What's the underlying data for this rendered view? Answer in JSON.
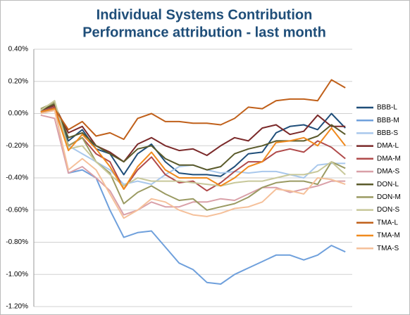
{
  "chart_data": {
    "type": "line",
    "title": "Individual Systems Contribution",
    "subtitle": "Performance attribution - last month",
    "categories": [
      null,
      null,
      null,
      null,
      null,
      null,
      null,
      null,
      null,
      null,
      null,
      null,
      null,
      null,
      null,
      null,
      null,
      null,
      null,
      null,
      null,
      null,
      null
    ],
    "ylim": [
      -1.2,
      0.4
    ],
    "yticks": [
      {
        "value": 0.4,
        "label": "0.40%"
      },
      {
        "value": 0.2,
        "label": "0.20%"
      },
      {
        "value": 0,
        "label": "0.00%"
      },
      {
        "value": -0.2,
        "label": "-0.20%"
      },
      {
        "value": -0.4,
        "label": "-0.40%"
      },
      {
        "value": -0.6,
        "label": "-0.60%"
      },
      {
        "value": -0.8,
        "label": "-0.80%"
      },
      {
        "value": -1.0,
        "label": "-1.00%"
      },
      {
        "value": -1.2,
        "label": "-1.20%"
      }
    ],
    "grid": true,
    "legend": "right",
    "series": [
      {
        "name": "BBB-L",
        "color": "#1f4e79",
        "values": [
          0.01,
          0.04,
          -0.17,
          -0.1,
          -0.22,
          -0.25,
          -0.38,
          -0.25,
          -0.19,
          -0.3,
          -0.37,
          -0.38,
          -0.38,
          -0.39,
          -0.33,
          -0.25,
          -0.24,
          -0.12,
          -0.08,
          -0.07,
          -0.1,
          0.0,
          -0.09
        ]
      },
      {
        "name": "BBB-M",
        "color": "#6fa0dc",
        "values": [
          0.0,
          0.03,
          -0.37,
          -0.35,
          -0.4,
          -0.6,
          -0.77,
          -0.74,
          -0.73,
          -0.83,
          -0.93,
          -0.97,
          -1.05,
          -1.06,
          -1.0,
          -0.96,
          -0.92,
          -0.88,
          -0.88,
          -0.91,
          -0.88,
          -0.82,
          -0.86
        ]
      },
      {
        "name": "BBB-S",
        "color": "#a9c8ec",
        "values": [
          0.0,
          0.02,
          -0.2,
          -0.25,
          -0.3,
          -0.35,
          -0.44,
          -0.42,
          -0.44,
          -0.38,
          -0.33,
          -0.32,
          -0.35,
          -0.37,
          -0.36,
          -0.37,
          -0.36,
          -0.36,
          -0.38,
          -0.4,
          -0.32,
          -0.31,
          -0.31
        ]
      },
      {
        "name": "DMA-L",
        "color": "#7b2a2a",
        "values": [
          0.02,
          0.05,
          -0.12,
          -0.08,
          -0.2,
          -0.24,
          -0.3,
          -0.19,
          -0.15,
          -0.2,
          -0.23,
          -0.22,
          -0.26,
          -0.2,
          -0.15,
          -0.17,
          -0.09,
          -0.07,
          -0.13,
          -0.11,
          -0.01,
          -0.08,
          -0.08
        ]
      },
      {
        "name": "DMA-M",
        "color": "#b04a4a",
        "values": [
          0.01,
          0.04,
          -0.2,
          -0.15,
          -0.25,
          -0.3,
          -0.47,
          -0.35,
          -0.27,
          -0.38,
          -0.43,
          -0.42,
          -0.48,
          -0.43,
          -0.36,
          -0.3,
          -0.3,
          -0.24,
          -0.22,
          -0.24,
          -0.17,
          -0.21,
          -0.28
        ]
      },
      {
        "name": "DMA-S",
        "color": "#d9a0a8",
        "values": [
          -0.01,
          -0.03,
          -0.37,
          -0.33,
          -0.4,
          -0.48,
          -0.63,
          -0.6,
          -0.55,
          -0.58,
          -0.58,
          -0.55,
          -0.55,
          -0.53,
          -0.54,
          -0.5,
          -0.46,
          -0.46,
          -0.49,
          -0.47,
          -0.45,
          -0.42,
          -0.42
        ]
      },
      {
        "name": "DON-L",
        "color": "#5a5a2a",
        "values": [
          0.02,
          0.06,
          -0.15,
          -0.12,
          -0.2,
          -0.25,
          -0.3,
          -0.22,
          -0.2,
          -0.28,
          -0.32,
          -0.32,
          -0.35,
          -0.33,
          -0.25,
          -0.22,
          -0.2,
          -0.17,
          -0.17,
          -0.17,
          -0.14,
          -0.07,
          -0.13
        ]
      },
      {
        "name": "DON-M",
        "color": "#9a9a62",
        "values": [
          0.03,
          0.07,
          -0.2,
          -0.15,
          -0.3,
          -0.37,
          -0.56,
          -0.49,
          -0.45,
          -0.5,
          -0.54,
          -0.53,
          -0.6,
          -0.58,
          -0.56,
          -0.52,
          -0.46,
          -0.43,
          -0.42,
          -0.42,
          -0.44,
          -0.3,
          -0.34
        ]
      },
      {
        "name": "DON-S",
        "color": "#c8c89a",
        "values": [
          0.02,
          0.08,
          -0.22,
          -0.2,
          -0.3,
          -0.38,
          -0.45,
          -0.4,
          -0.42,
          -0.42,
          -0.42,
          -0.43,
          -0.44,
          -0.45,
          -0.43,
          -0.42,
          -0.42,
          -0.4,
          -0.38,
          -0.38,
          -0.36,
          -0.3,
          -0.38
        ]
      },
      {
        "name": "TMA-L",
        "color": "#c0601a",
        "values": [
          0.01,
          0.03,
          -0.1,
          -0.05,
          -0.14,
          -0.12,
          -0.16,
          -0.03,
          0.0,
          -0.05,
          -0.05,
          -0.06,
          -0.06,
          -0.07,
          -0.03,
          0.04,
          0.03,
          0.08,
          0.09,
          0.09,
          0.08,
          0.21,
          0.16
        ]
      },
      {
        "name": "TMA-M",
        "color": "#f08a1e",
        "values": [
          0.01,
          0.03,
          -0.23,
          -0.13,
          -0.22,
          -0.33,
          -0.47,
          -0.33,
          -0.24,
          -0.35,
          -0.4,
          -0.4,
          -0.4,
          -0.45,
          -0.4,
          -0.33,
          -0.3,
          -0.18,
          -0.17,
          -0.15,
          -0.2,
          -0.09,
          -0.2
        ]
      },
      {
        "name": "TMA-S",
        "color": "#f5c09a",
        "values": [
          0.0,
          0.02,
          -0.35,
          -0.28,
          -0.35,
          -0.5,
          -0.65,
          -0.6,
          -0.53,
          -0.55,
          -0.6,
          -0.63,
          -0.64,
          -0.62,
          -0.59,
          -0.58,
          -0.55,
          -0.47,
          -0.48,
          -0.5,
          -0.4,
          -0.41,
          -0.44
        ]
      }
    ]
  }
}
